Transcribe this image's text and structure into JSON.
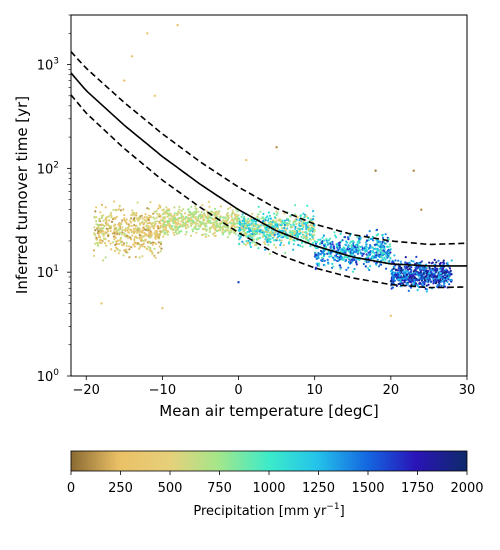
{
  "chart_data": {
    "type": "scatter",
    "title": "",
    "xlabel": "Mean air temperature [degC]",
    "ylabel": "Inferred turnover time [yr]",
    "xlim": [
      -22,
      30
    ],
    "ylim": [
      1,
      3000
    ],
    "yscale": "log",
    "x_ticks": [
      -20,
      -10,
      0,
      10,
      20,
      30
    ],
    "x_tick_labels": [
      "−20",
      "−10",
      "0",
      "10",
      "20",
      "30"
    ],
    "y_ticks": [
      1,
      10,
      100,
      1000
    ],
    "y_tick_labels": [
      "10",
      "10",
      "10",
      "10"
    ],
    "y_tick_exponents": [
      "0",
      "1",
      "2",
      "3"
    ],
    "grid": false,
    "legend": "none",
    "colorbar": {
      "label_main": "Precipitation [mm yr",
      "label_exp": "−1",
      "label_end": "]",
      "range": [
        0,
        2000
      ],
      "ticks": [
        0,
        250,
        500,
        750,
        1000,
        1250,
        1500,
        1750,
        2000
      ],
      "tick_labels": [
        "0",
        "250",
        "500",
        "750",
        "1000",
        "1250",
        "1500",
        "1750",
        "2000"
      ],
      "colormap": [
        {
          "pos": 0.0,
          "color": "#8a6a32"
        },
        {
          "pos": 0.12,
          "color": "#eac066"
        },
        {
          "pos": 0.25,
          "color": "#e6d07a"
        },
        {
          "pos": 0.37,
          "color": "#a6e68a"
        },
        {
          "pos": 0.5,
          "color": "#3cebc9"
        },
        {
          "pos": 0.62,
          "color": "#24c4ea"
        },
        {
          "pos": 0.75,
          "color": "#1466e0"
        },
        {
          "pos": 0.87,
          "color": "#2a14b8"
        },
        {
          "pos": 1.0,
          "color": "#0e2a6a"
        }
      ]
    },
    "fit_lines": [
      {
        "style": "solid",
        "x": [
          -22,
          -20,
          -15,
          -10,
          -5,
          0,
          5,
          10,
          15,
          20,
          25,
          30
        ],
        "y": [
          830,
          560,
          260,
          130,
          70,
          40,
          25,
          18,
          14,
          12,
          11.5,
          11.5
        ]
      },
      {
        "style": "dashed",
        "x": [
          -22,
          -20,
          -15,
          -10,
          -5,
          0,
          5,
          10,
          15,
          20,
          25,
          30
        ],
        "y": [
          1330,
          920,
          430,
          215,
          115,
          66,
          41,
          29,
          23,
          20,
          18.5,
          19
        ]
      },
      {
        "style": "dashed",
        "x": [
          -22,
          -20,
          -15,
          -10,
          -5,
          0,
          5,
          10,
          15,
          20,
          25,
          30
        ],
        "y": [
          510,
          340,
          155,
          77,
          42,
          24,
          15,
          11,
          8.8,
          7.6,
          7.1,
          7.2
        ]
      }
    ],
    "point_groups": [
      {
        "x": [
          -19,
          -10
        ],
        "center": 25,
        "spread": 0.45,
        "precip": [
          100,
          700
        ],
        "count": 500
      },
      {
        "x": [
          -10,
          0
        ],
        "center": 31,
        "spread": 0.25,
        "precip": [
          400,
          800
        ],
        "count": 550
      },
      {
        "x": [
          0,
          10
        ],
        "center": 26,
        "spread": 0.3,
        "precip": [
          400,
          1400
        ],
        "count": 650
      },
      {
        "x": [
          10,
          20
        ],
        "center": 16,
        "spread": 0.3,
        "precip": [
          900,
          1700
        ],
        "count": 550
      },
      {
        "x": [
          20,
          28
        ],
        "center": 9.5,
        "spread": 0.25,
        "precip": [
          1200,
          2000
        ],
        "count": 650
      }
    ],
    "outlier_points": [
      {
        "x": -14,
        "y": 1200,
        "p": 300
      },
      {
        "x": -12,
        "y": 2000,
        "p": 350
      },
      {
        "x": -8,
        "y": 2400,
        "p": 300
      },
      {
        "x": -15,
        "y": 700,
        "p": 250
      },
      {
        "x": -11,
        "y": 500,
        "p": 300
      },
      {
        "x": 1,
        "y": 120,
        "p": 300
      },
      {
        "x": 5,
        "y": 160,
        "p": 100
      },
      {
        "x": 18,
        "y": 95,
        "p": 50
      },
      {
        "x": 23,
        "y": 95,
        "p": 80
      },
      {
        "x": 24,
        "y": 40,
        "p": 100
      },
      {
        "x": 20,
        "y": 3.8,
        "p": 300
      },
      {
        "x": -18,
        "y": 5,
        "p": 300
      },
      {
        "x": -10,
        "y": 4.5,
        "p": 350
      },
      {
        "x": 0,
        "y": 8,
        "p": 1600
      }
    ]
  }
}
